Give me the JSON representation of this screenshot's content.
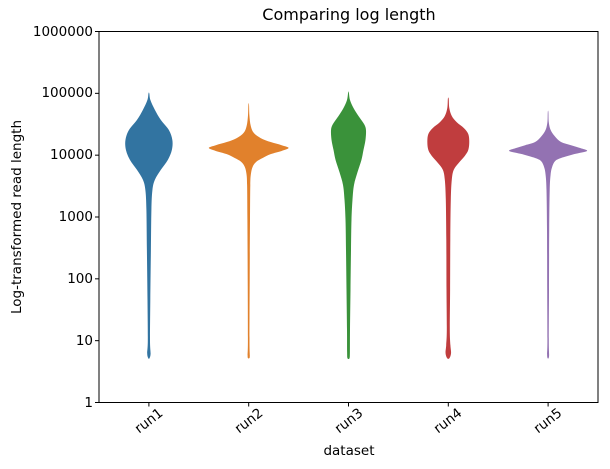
{
  "chart_data": {
    "type": "violin",
    "title": "Comparing log length",
    "xlabel": "dataset",
    "ylabel": "Log-transformed read length",
    "categories": [
      "run1",
      "run2",
      "run3",
      "run4",
      "run5"
    ],
    "x_tick_rotation_deg": 38,
    "y_scale": "log",
    "ylim": [
      1,
      1000000
    ],
    "yticks": [
      1,
      10,
      100,
      1000,
      10000,
      100000,
      1000000
    ],
    "ytick_labels": [
      "1",
      "10",
      "100",
      "1000",
      "10000",
      "100000",
      "1000000"
    ],
    "grid": false,
    "legend": false,
    "frame_color": "#000000",
    "violin_width_fraction_of_slot": 0.8,
    "series": [
      {
        "name": "run1",
        "color": "#3274a1",
        "min_value": 5.2,
        "peak_value": 15000,
        "max_value": 100000,
        "profile": [
          [
            100000,
            0.008
          ],
          [
            78000,
            0.03
          ],
          [
            54000,
            0.12
          ],
          [
            37000,
            0.24
          ],
          [
            25500,
            0.4
          ],
          [
            17600,
            0.47
          ],
          [
            12100,
            0.46
          ],
          [
            8400,
            0.38
          ],
          [
            5800,
            0.24
          ],
          [
            4000,
            0.12
          ],
          [
            2700,
            0.07
          ],
          [
            1300,
            0.05
          ],
          [
            290,
            0.04
          ],
          [
            45,
            0.028
          ],
          [
            10,
            0.022
          ],
          [
            6.2,
            0.034
          ],
          [
            5.2,
            0.012
          ]
        ]
      },
      {
        "name": "run2",
        "color": "#e1812c",
        "min_value": 5.2,
        "peak_value": 13000,
        "max_value": 66000,
        "profile": [
          [
            66000,
            0.006
          ],
          [
            44000,
            0.014
          ],
          [
            30000,
            0.04
          ],
          [
            23000,
            0.1
          ],
          [
            18900,
            0.24
          ],
          [
            16300,
            0.44
          ],
          [
            14500,
            0.66
          ],
          [
            13100,
            0.8
          ],
          [
            11700,
            0.66
          ],
          [
            10400,
            0.44
          ],
          [
            9000,
            0.28
          ],
          [
            7800,
            0.15
          ],
          [
            6500,
            0.08
          ],
          [
            5000,
            0.045
          ],
          [
            3300,
            0.032
          ],
          [
            900,
            0.026
          ],
          [
            96,
            0.02
          ],
          [
            10,
            0.016
          ],
          [
            5.7,
            0.022
          ],
          [
            5.2,
            0.01
          ]
        ]
      },
      {
        "name": "run3",
        "color": "#3a923a",
        "min_value": 5.2,
        "peak_value": 26000,
        "max_value": 104000,
        "profile": [
          [
            104000,
            0.006
          ],
          [
            78000,
            0.03
          ],
          [
            58000,
            0.1
          ],
          [
            43000,
            0.2
          ],
          [
            32000,
            0.31
          ],
          [
            25600,
            0.35
          ],
          [
            17600,
            0.34
          ],
          [
            12100,
            0.3
          ],
          [
            8400,
            0.26
          ],
          [
            5300,
            0.18
          ],
          [
            3300,
            0.11
          ],
          [
            1900,
            0.08
          ],
          [
            900,
            0.06
          ],
          [
            290,
            0.05
          ],
          [
            66,
            0.04
          ],
          [
            15,
            0.03
          ],
          [
            6.6,
            0.028
          ],
          [
            5.2,
            0.02
          ]
        ]
      },
      {
        "name": "run4",
        "color": "#c03d3e",
        "min_value": 5.2,
        "peak_value": 18000,
        "max_value": 82000,
        "profile": [
          [
            82000,
            0.008
          ],
          [
            58000,
            0.02
          ],
          [
            43000,
            0.07
          ],
          [
            34000,
            0.17
          ],
          [
            27500,
            0.31
          ],
          [
            22000,
            0.4
          ],
          [
            16300,
            0.42
          ],
          [
            12100,
            0.4
          ],
          [
            9700,
            0.33
          ],
          [
            7500,
            0.21
          ],
          [
            5800,
            0.11
          ],
          [
            4000,
            0.07
          ],
          [
            1900,
            0.05
          ],
          [
            430,
            0.04
          ],
          [
            66,
            0.036
          ],
          [
            15,
            0.03
          ],
          [
            8.5,
            0.042
          ],
          [
            6.3,
            0.055
          ],
          [
            5.2,
            0.022
          ]
        ]
      },
      {
        "name": "run5",
        "color": "#9372b2",
        "min_value": 5.2,
        "peak_value": 11700,
        "max_value": 50000,
        "profile": [
          [
            50000,
            0.006
          ],
          [
            34000,
            0.014
          ],
          [
            25600,
            0.05
          ],
          [
            20400,
            0.13
          ],
          [
            16300,
            0.26
          ],
          [
            14500,
            0.46
          ],
          [
            13000,
            0.65
          ],
          [
            11700,
            0.78
          ],
          [
            10400,
            0.52
          ],
          [
            9000,
            0.26
          ],
          [
            8000,
            0.14
          ],
          [
            6400,
            0.08
          ],
          [
            4800,
            0.05
          ],
          [
            2700,
            0.032
          ],
          [
            620,
            0.022
          ],
          [
            66,
            0.018
          ],
          [
            10,
            0.014
          ],
          [
            5.9,
            0.02
          ],
          [
            5.2,
            0.008
          ]
        ]
      }
    ]
  }
}
